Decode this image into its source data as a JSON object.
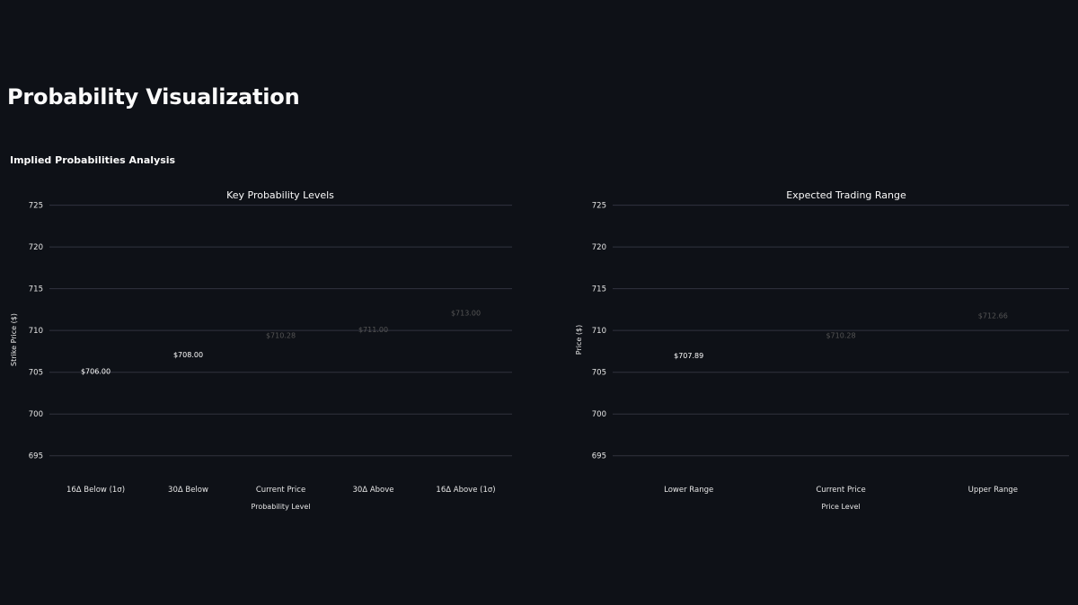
{
  "page": {
    "title": "Probability Visualization",
    "subtitle": "Implied Probabilities Analysis"
  },
  "colors": {
    "background": "#0e1117",
    "red": "#ff0000",
    "yellow": "#ffff00",
    "green": "#00ff00",
    "grid": "#31333f"
  },
  "chart_data": [
    {
      "type": "bar",
      "title": "Key Probability Levels",
      "xlabel": "Probability Level",
      "ylabel": "Strike Price ($)",
      "ylim": [
        692.5,
        727
      ],
      "yticks": [
        695,
        700,
        705,
        710,
        715,
        720,
        725
      ],
      "grid": true,
      "categories": [
        "16Δ Below (1σ)",
        "30Δ Below",
        "Current Price",
        "30Δ Above",
        "16Δ Above (1σ)"
      ],
      "values": [
        706.0,
        708.0,
        710.28,
        711.0,
        713.0
      ],
      "labels": [
        "$706.00",
        "$708.00",
        "$710.28",
        "$711.00",
        "$713.00"
      ],
      "colors": [
        "#ff0000",
        "#ff0000",
        "#ffff00",
        "#00ff00",
        "#00ff00"
      ]
    },
    {
      "type": "bar",
      "title": "Expected Trading Range",
      "xlabel": "Price Level",
      "ylabel": "Price ($)",
      "ylim": [
        692.5,
        727
      ],
      "yticks": [
        695,
        700,
        705,
        710,
        715,
        720,
        725
      ],
      "grid": true,
      "categories": [
        "Lower Range",
        "Current Price",
        "Upper Range"
      ],
      "values": [
        707.89,
        710.28,
        712.66
      ],
      "labels": [
        "$707.89",
        "$710.28",
        "$712.66"
      ],
      "colors": [
        "#ff0000",
        "#ffff00",
        "#00ff00"
      ]
    }
  ]
}
